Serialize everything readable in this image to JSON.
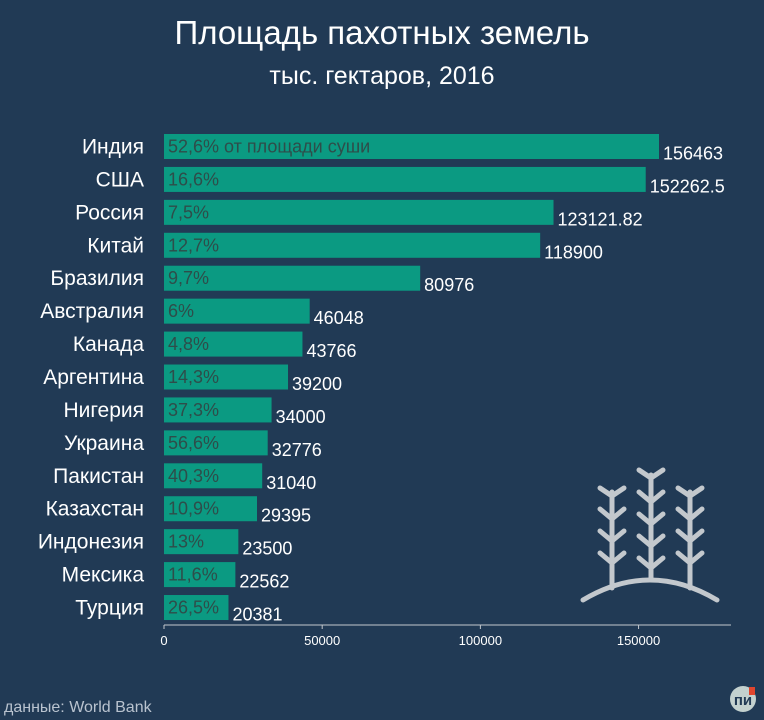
{
  "chart_data": {
    "type": "bar",
    "orientation": "horizontal",
    "title": "Площадь пахотных земель",
    "subtitle": "тыс. гектаров, 2016",
    "categories": [
      "Индия",
      "США",
      "Россия",
      "Китай",
      "Бразилия",
      "Австралия",
      "Канада",
      "Аргентина",
      "Нигерия",
      "Украина",
      "Пакистан",
      "Казахстан",
      "Индонезия",
      "Мексика",
      "Турция"
    ],
    "values": [
      156463,
      152262.5,
      123121.82,
      118900,
      80976,
      46048,
      43766,
      39200,
      34000,
      32776,
      31040,
      29395,
      23500,
      22562,
      20381
    ],
    "value_labels": [
      "156463",
      "152262.5",
      "123121.82",
      "118900",
      "80976",
      "46048",
      "43766",
      "39200",
      "34000",
      "32776",
      "31040",
      "29395",
      "23500",
      "22562",
      "20381"
    ],
    "share_labels": [
      "52,6% от площади суши",
      "16,6%",
      "7,5%",
      "12,7%",
      "9,7%",
      "6%",
      "4,8%",
      "14,3%",
      "37,3%",
      "56,6%",
      "40,3%",
      "10,9%",
      "13%",
      "11,6%",
      "26,5%"
    ],
    "xlim": [
      0,
      180000
    ],
    "xticks": [
      0,
      50000,
      100000,
      150000
    ],
    "xtick_labels": [
      "0",
      "50000",
      "100000",
      "150000"
    ],
    "xlabel": "",
    "ylabel": "",
    "grid": false,
    "legend": "none"
  },
  "source": "данные: World Bank",
  "logo": {
    "text": "пи"
  },
  "colors": {
    "background": "#213a55",
    "bar": "#0b9a82",
    "bar_edge": "#0a8a74",
    "text": "#ffffff",
    "share_text": "#2e4d4a",
    "icon": "#c3c8cd",
    "source_text": "#b9c3cf",
    "logo_bg": "#c3d1cf",
    "logo_accent": "#e0452e"
  },
  "icon": "wheat-sprouts-icon"
}
